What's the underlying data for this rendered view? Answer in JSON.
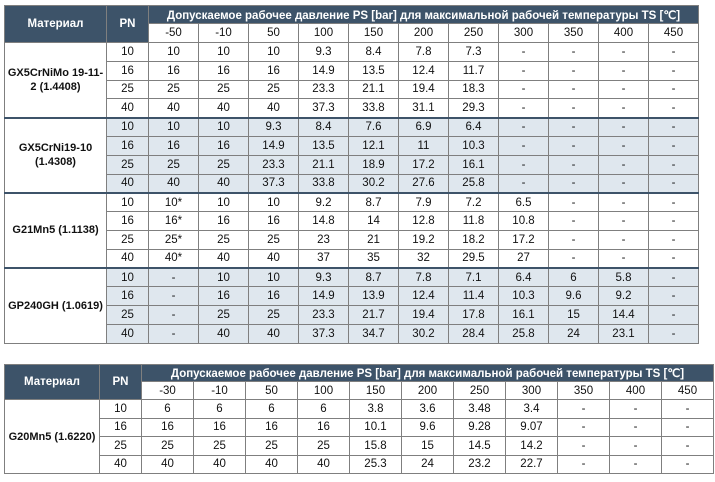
{
  "table1": {
    "col_material": "Материал",
    "col_pn": "PN",
    "title": "Допускаемое рабочее давление PS [bar] для максимальной рабочей температуры TS [℃]",
    "temps": [
      "-50",
      "-10",
      "50",
      "100",
      "150",
      "200",
      "250",
      "300",
      "350",
      "400",
      "450"
    ],
    "groups": [
      {
        "material": "GX5CrNiMo 19-11-2 (1.4408)",
        "rows": [
          {
            "pn": "10",
            "values": [
              "10",
              "10",
              "10",
              "9.3",
              "8.4",
              "7.8",
              "7.3",
              "-",
              "-",
              "-",
              "-"
            ]
          },
          {
            "pn": "16",
            "values": [
              "16",
              "16",
              "16",
              "14.9",
              "13.5",
              "12.4",
              "11.7",
              "-",
              "-",
              "-",
              "-"
            ]
          },
          {
            "pn": "25",
            "values": [
              "25",
              "25",
              "25",
              "23.3",
              "21.1",
              "19.4",
              "18.3",
              "-",
              "-",
              "-",
              "-"
            ]
          },
          {
            "pn": "40",
            "values": [
              "40",
              "40",
              "40",
              "37.3",
              "33.8",
              "31.1",
              "29.3",
              "-",
              "-",
              "-",
              "-"
            ]
          }
        ]
      },
      {
        "material": "GX5CrNi19-10 (1.4308)",
        "rows": [
          {
            "pn": "10",
            "values": [
              "10",
              "10",
              "9.3",
              "8.4",
              "7.6",
              "6.9",
              "6.4",
              "-",
              "-",
              "-",
              "-"
            ]
          },
          {
            "pn": "16",
            "values": [
              "16",
              "16",
              "14.9",
              "13.5",
              "12.1",
              "11",
              "10.3",
              "-",
              "-",
              "-",
              "-"
            ]
          },
          {
            "pn": "25",
            "values": [
              "25",
              "25",
              "23.3",
              "21.1",
              "18.9",
              "17.2",
              "16.1",
              "-",
              "-",
              "-",
              "-"
            ]
          },
          {
            "pn": "40",
            "values": [
              "40",
              "40",
              "37.3",
              "33.8",
              "30.2",
              "27.6",
              "25.8",
              "-",
              "-",
              "-",
              "-"
            ]
          }
        ]
      },
      {
        "material": "G21Mn5 (1.1138)",
        "rows": [
          {
            "pn": "10",
            "values": [
              "10*",
              "10",
              "10",
              "9.2",
              "8.7",
              "7.9",
              "7.2",
              "6.5",
              "-",
              "-",
              "-"
            ]
          },
          {
            "pn": "16",
            "values": [
              "16*",
              "16",
              "16",
              "14.8",
              "14",
              "12.8",
              "11.8",
              "10.8",
              "-",
              "-",
              "-"
            ]
          },
          {
            "pn": "25",
            "values": [
              "25*",
              "25",
              "25",
              "23",
              "21",
              "19.2",
              "18.2",
              "17.2",
              "-",
              "-",
              "-"
            ]
          },
          {
            "pn": "40",
            "values": [
              "40*",
              "40",
              "40",
              "37",
              "35",
              "32",
              "29.5",
              "27",
              "-",
              "-",
              "-"
            ]
          }
        ]
      },
      {
        "material": "GP240GH (1.0619)",
        "rows": [
          {
            "pn": "10",
            "values": [
              "-",
              "10",
              "10",
              "9.3",
              "8.7",
              "7.8",
              "7.1",
              "6.4",
              "6",
              "5.8",
              "-"
            ]
          },
          {
            "pn": "16",
            "values": [
              "-",
              "16",
              "16",
              "14.9",
              "13.9",
              "12.4",
              "11.4",
              "10.3",
              "9.6",
              "9.2",
              "-"
            ]
          },
          {
            "pn": "25",
            "values": [
              "-",
              "25",
              "25",
              "23.3",
              "21.7",
              "19.4",
              "17.8",
              "16.1",
              "15",
              "14.4",
              "-"
            ]
          },
          {
            "pn": "40",
            "values": [
              "-",
              "40",
              "40",
              "37.3",
              "34.7",
              "30.2",
              "28.4",
              "25.8",
              "24",
              "23.1",
              "-"
            ]
          }
        ]
      }
    ]
  },
  "table2": {
    "col_material": "Материал",
    "col_pn": "PN",
    "title": "Допускаемое рабочее давление PS [bar] для максимальной рабочей температуры TS [℃]",
    "temps": [
      "-30",
      "-10",
      "50",
      "100",
      "150",
      "200",
      "250",
      "300",
      "350",
      "400",
      "450"
    ],
    "groups": [
      {
        "material": "G20Mn5 (1.6220)",
        "rows": [
          {
            "pn": "10",
            "values": [
              "6",
              "6",
              "6",
              "6",
              "3.8",
              "3.6",
              "3.48",
              "3.4",
              "-",
              "-",
              "-"
            ]
          },
          {
            "pn": "16",
            "values": [
              "16",
              "16",
              "16",
              "16",
              "10.1",
              "9.6",
              "9.28",
              "9.07",
              "-",
              "-",
              "-"
            ]
          },
          {
            "pn": "25",
            "values": [
              "25",
              "25",
              "25",
              "25",
              "15.8",
              "15",
              "14.5",
              "14.2",
              "-",
              "-",
              "-"
            ]
          },
          {
            "pn": "40",
            "values": [
              "40",
              "40",
              "40",
              "40",
              "25.3",
              "24",
              "23.2",
              "22.7",
              "-",
              "-",
              "-"
            ]
          }
        ]
      }
    ]
  }
}
